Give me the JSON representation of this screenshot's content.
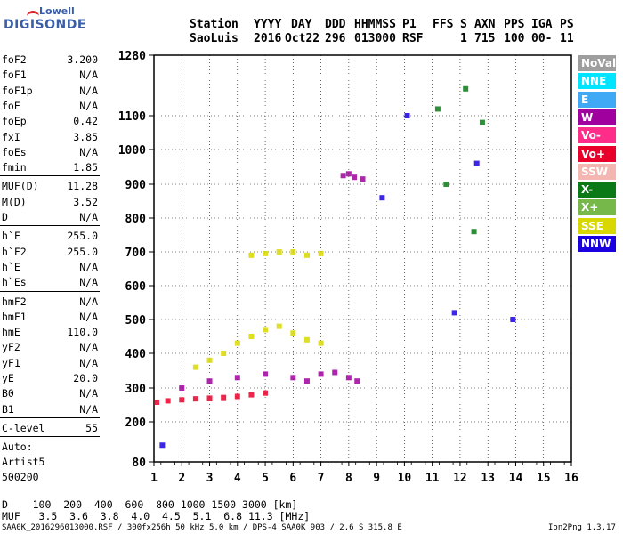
{
  "logo": {
    "top": "Lowell",
    "bottom": "DIGISONDE"
  },
  "header": {
    "labels": [
      "Station",
      "YYYY",
      "DAY",
      "DDD",
      "HHMMSS",
      "P1",
      "FFS",
      "S",
      "AXN",
      "PPS",
      "IGA",
      "PS"
    ],
    "values": [
      "SaoLuis",
      "2016",
      "Oct22",
      "296",
      "013000",
      "RSF",
      "1",
      "715",
      "100",
      "00-",
      "11"
    ]
  },
  "params_group1": [
    {
      "name": "foF2",
      "value": "3.200"
    },
    {
      "name": "foF1",
      "value": "N/A"
    },
    {
      "name": "foF1p",
      "value": "N/A"
    },
    {
      "name": "foE",
      "value": "N/A"
    },
    {
      "name": "foEp",
      "value": "0.42"
    },
    {
      "name": "fxI",
      "value": "3.85"
    },
    {
      "name": "foEs",
      "value": "N/A"
    },
    {
      "name": "fmin",
      "value": "1.85"
    }
  ],
  "params_group2": [
    {
      "name": "MUF(D)",
      "value": "11.28"
    },
    {
      "name": "M(D)",
      "value": "3.52"
    },
    {
      "name": "D",
      "value": "N/A"
    }
  ],
  "params_group3": [
    {
      "name": "h`F",
      "value": "255.0"
    },
    {
      "name": "h`F2",
      "value": "255.0"
    },
    {
      "name": "h`E",
      "value": "N/A"
    },
    {
      "name": "h`Es",
      "value": "N/A"
    }
  ],
  "params_group4": [
    {
      "name": "hmF2",
      "value": "N/A"
    },
    {
      "name": "hmF1",
      "value": "N/A"
    },
    {
      "name": "hmE",
      "value": "110.0"
    },
    {
      "name": "yF2",
      "value": "N/A"
    },
    {
      "name": "yF1",
      "value": "N/A"
    },
    {
      "name": "yE",
      "value": "20.0"
    },
    {
      "name": "B0",
      "value": "N/A"
    },
    {
      "name": "B1",
      "value": "N/A"
    }
  ],
  "clevel": {
    "name": "C-level",
    "value": "55"
  },
  "auto": [
    "Auto:",
    "Artist5",
    "500200"
  ],
  "legend": [
    {
      "label": "NoVal",
      "color": "#9e9e9e"
    },
    {
      "label": "NNE",
      "color": "#00e5ff"
    },
    {
      "label": "E",
      "color": "#3fa9f5"
    },
    {
      "label": "W",
      "color": "#a0009e"
    },
    {
      "label": "Vo-",
      "color": "#ff2d8a"
    },
    {
      "label": "Vo+",
      "color": "#e8002a"
    },
    {
      "label": "SSW",
      "color": "#f4b6b0"
    },
    {
      "label": "X-",
      "color": "#0b7a16"
    },
    {
      "label": "X+",
      "color": "#76b84a"
    },
    {
      "label": "SSE",
      "color": "#d8d800"
    },
    {
      "label": "NNW",
      "color": "#1a00e0"
    }
  ],
  "distance_row": "D    100  200  400  600  800 1000 1500 3000 [km]",
  "muf_row": "MUF   3.5  3.6  3.8  4.0  4.5  5.1  6.8 11.3 [MHz]",
  "footer": {
    "left": "SAA0K_2016296013000.RSF / 300fx256h 50 kHz 5.0 km / DPS-4 SAA0K 903 / 2.6 S 315.8 E",
    "right": "Ion2Png 1.3.17"
  },
  "chart_data": {
    "type": "scatter",
    "xlim": [
      1,
      16
    ],
    "ylim": [
      80,
      1280
    ],
    "xticks": [
      "1",
      "2",
      "3",
      "4",
      "5",
      "6",
      "7",
      "8",
      "9",
      "10",
      "11",
      "12",
      "13",
      "14",
      "15",
      "16"
    ],
    "yticks": [
      "80",
      "200",
      "300",
      "400",
      "500",
      "600",
      "700",
      "800",
      "900",
      "1000",
      "1100",
      "1280"
    ],
    "scale": "log-like height axis",
    "grid": "dotted",
    "series": [
      {
        "name": "Vo+",
        "color": "#e8002a",
        "x": [
          1.1,
          1.5,
          2.0,
          2.5,
          3.0,
          3.5,
          4.0,
          4.5,
          5.0
        ],
        "y": [
          258,
          262,
          265,
          268,
          270,
          272,
          275,
          280,
          285
        ]
      },
      {
        "name": "W",
        "color": "#a0009e",
        "x": [
          2.0,
          3.0,
          4.0,
          5.0,
          6.0,
          6.5,
          7.0,
          7.5,
          8.0,
          8.3
        ],
        "y": [
          300,
          320,
          330,
          340,
          330,
          320,
          340,
          345,
          330,
          320
        ]
      },
      {
        "name": "SSE",
        "color": "#d8d800",
        "x": [
          2.5,
          3.0,
          3.5,
          4.0,
          4.5,
          5.0,
          5.5,
          6.0,
          6.5,
          7.0
        ],
        "y": [
          360,
          380,
          400,
          430,
          450,
          470,
          480,
          460,
          440,
          430
        ]
      },
      {
        "name": "SSE",
        "color": "#d8d800",
        "x": [
          4.5,
          5.0,
          5.5,
          6.0,
          6.5,
          7.0
        ],
        "y": [
          690,
          695,
          700,
          700,
          690,
          695
        ]
      },
      {
        "name": "W",
        "color": "#a0009e",
        "x": [
          7.8,
          8.0,
          8.2,
          8.5
        ],
        "y": [
          925,
          930,
          920,
          915
        ]
      },
      {
        "name": "X-",
        "color": "#0b7a16",
        "x": [
          11.2,
          11.5,
          12.2,
          12.5,
          12.8
        ],
        "y": [
          1120,
          900,
          1180,
          760,
          1080
        ]
      },
      {
        "name": "NNW",
        "color": "#1a00e0",
        "x": [
          1.3,
          9.2,
          10.1,
          11.8,
          12.6,
          13.9
        ],
        "y": [
          130,
          860,
          1100,
          520,
          960,
          500
        ]
      }
    ]
  }
}
